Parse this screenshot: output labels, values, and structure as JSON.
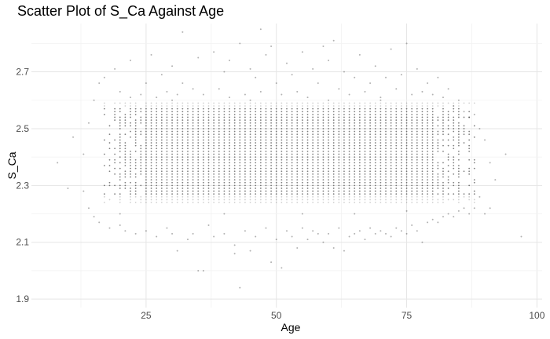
{
  "chart_data": {
    "type": "scatter",
    "title": "Scatter Plot of S_Ca Against Age",
    "xlabel": "Age",
    "ylabel": "S_Ca",
    "xlim": [
      3,
      101
    ],
    "ylim": [
      1.87,
      2.87
    ],
    "x_ticks": [
      25,
      50,
      75,
      100
    ],
    "x_tick_labels": [
      "25",
      "50",
      "75",
      "100"
    ],
    "y_ticks": [
      1.9,
      2.1,
      2.3,
      2.5,
      2.7
    ],
    "y_tick_labels": [
      "1.9",
      "2.1",
      "2.3",
      "2.5",
      "2.7"
    ],
    "grid": true,
    "legend": "none",
    "point_color": "#000000",
    "point_opacity": 0.2,
    "dense_region": {
      "x_range": [
        17,
        88
      ],
      "y_range": [
        2.24,
        2.59
      ],
      "x_step": 1,
      "y_step": 0.01,
      "note_hidden": ""
    },
    "points": [
      [
        8,
        2.38
      ],
      [
        10,
        2.29
      ],
      [
        11,
        2.47
      ],
      [
        13,
        2.41
      ],
      [
        13,
        2.28
      ],
      [
        14,
        2.52
      ],
      [
        14,
        2.22
      ],
      [
        15,
        2.6
      ],
      [
        15,
        2.19
      ],
      [
        16,
        2.66
      ],
      [
        16,
        2.17
      ],
      [
        17,
        2.68
      ],
      [
        18,
        2.15
      ],
      [
        19,
        2.71
      ],
      [
        20,
        2.63
      ],
      [
        20,
        2.16
      ],
      [
        21,
        2.14
      ],
      [
        22,
        2.74
      ],
      [
        22,
        2.61
      ],
      [
        23,
        2.13
      ],
      [
        24,
        2.62
      ],
      [
        25,
        2.66
      ],
      [
        25,
        2.14
      ],
      [
        26,
        2.76
      ],
      [
        27,
        2.61
      ],
      [
        27,
        2.12
      ],
      [
        28,
        2.69
      ],
      [
        29,
        2.63
      ],
      [
        29,
        2.15
      ],
      [
        30,
        2.72
      ],
      [
        30,
        2.13
      ],
      [
        31,
        2.07
      ],
      [
        31,
        2.62
      ],
      [
        32,
        2.84
      ],
      [
        32,
        2.66
      ],
      [
        33,
        2.11
      ],
      [
        34,
        2.64
      ],
      [
        34,
        2.13
      ],
      [
        35,
        2.0
      ],
      [
        35,
        2.75
      ],
      [
        36,
        2.0
      ],
      [
        36,
        2.62
      ],
      [
        37,
        2.16
      ],
      [
        38,
        2.77
      ],
      [
        38,
        2.12
      ],
      [
        39,
        2.64
      ],
      [
        40,
        2.7
      ],
      [
        40,
        2.13
      ],
      [
        41,
        2.74
      ],
      [
        41,
        2.61
      ],
      [
        42,
        2.09
      ],
      [
        42,
        2.06
      ],
      [
        43,
        2.8
      ],
      [
        43,
        1.94
      ],
      [
        44,
        2.62
      ],
      [
        44,
        2.14
      ],
      [
        45,
        2.71
      ],
      [
        45,
        2.07
      ],
      [
        46,
        2.68
      ],
      [
        46,
        2.12
      ],
      [
        47,
        2.85
      ],
      [
        47,
        2.63
      ],
      [
        48,
        2.76
      ],
      [
        48,
        2.15
      ],
      [
        49,
        2.79
      ],
      [
        49,
        2.03
      ],
      [
        50,
        2.66
      ],
      [
        50,
        2.11
      ],
      [
        51,
        2.62
      ],
      [
        51,
        2.01
      ],
      [
        52,
        2.73
      ],
      [
        52,
        2.14
      ],
      [
        53,
        2.69
      ],
      [
        53,
        2.12
      ],
      [
        54,
        2.08
      ],
      [
        54,
        2.63
      ],
      [
        55,
        2.77
      ],
      [
        55,
        2.15
      ],
      [
        56,
        2.61
      ],
      [
        56,
        2.11
      ],
      [
        57,
        2.71
      ],
      [
        57,
        2.14
      ],
      [
        58,
        2.66
      ],
      [
        58,
        2.13
      ],
      [
        59,
        2.79
      ],
      [
        59,
        2.1
      ],
      [
        60,
        2.74
      ],
      [
        60,
        2.13
      ],
      [
        61,
        2.81
      ],
      [
        61,
        2.08
      ],
      [
        62,
        2.64
      ],
      [
        62,
        2.15
      ],
      [
        63,
        2.7
      ],
      [
        63,
        2.07
      ],
      [
        64,
        2.62
      ],
      [
        64,
        2.12
      ],
      [
        65,
        2.68
      ],
      [
        65,
        2.13
      ],
      [
        66,
        2.76
      ],
      [
        66,
        2.14
      ],
      [
        67,
        2.63
      ],
      [
        67,
        2.11
      ],
      [
        68,
        2.66
      ],
      [
        68,
        2.15
      ],
      [
        69,
        2.72
      ],
      [
        69,
        2.13
      ],
      [
        70,
        2.61
      ],
      [
        70,
        2.14
      ],
      [
        71,
        2.68
      ],
      [
        71,
        2.13
      ],
      [
        72,
        2.78
      ],
      [
        72,
        2.12
      ],
      [
        73,
        2.64
      ],
      [
        73,
        2.15
      ],
      [
        74,
        2.69
      ],
      [
        74,
        2.14
      ],
      [
        75,
        2.8
      ],
      [
        75,
        2.13
      ],
      [
        76,
        2.62
      ],
      [
        76,
        2.16
      ],
      [
        77,
        2.71
      ],
      [
        77,
        2.14
      ],
      [
        78,
        2.1
      ],
      [
        78,
        2.63
      ],
      [
        79,
        2.66
      ],
      [
        79,
        2.17
      ],
      [
        80,
        2.62
      ],
      [
        80,
        2.18
      ],
      [
        81,
        2.68
      ],
      [
        81,
        2.17
      ],
      [
        82,
        2.61
      ],
      [
        82,
        2.19
      ],
      [
        83,
        2.64
      ],
      [
        83,
        2.2
      ],
      [
        84,
        2.58
      ],
      [
        84,
        2.19
      ],
      [
        85,
        2.6
      ],
      [
        85,
        2.21
      ],
      [
        86,
        2.56
      ],
      [
        86,
        2.22
      ],
      [
        87,
        2.54
      ],
      [
        87,
        2.2
      ],
      [
        88,
        2.55
      ],
      [
        88,
        2.22
      ],
      [
        89,
        2.5
      ],
      [
        89,
        2.26
      ],
      [
        90,
        2.46
      ],
      [
        90,
        2.2
      ],
      [
        91,
        2.38
      ],
      [
        91,
        2.22
      ],
      [
        92,
        2.32
      ],
      [
        94,
        2.41
      ],
      [
        97,
        2.12
      ],
      [
        30,
        2.6
      ],
      [
        45,
        2.6
      ],
      [
        60,
        2.6
      ],
      [
        70,
        2.6
      ],
      [
        20,
        2.2
      ],
      [
        40,
        2.2
      ],
      [
        55,
        2.2
      ],
      [
        65,
        2.2
      ],
      [
        75,
        2.21
      ]
    ]
  }
}
